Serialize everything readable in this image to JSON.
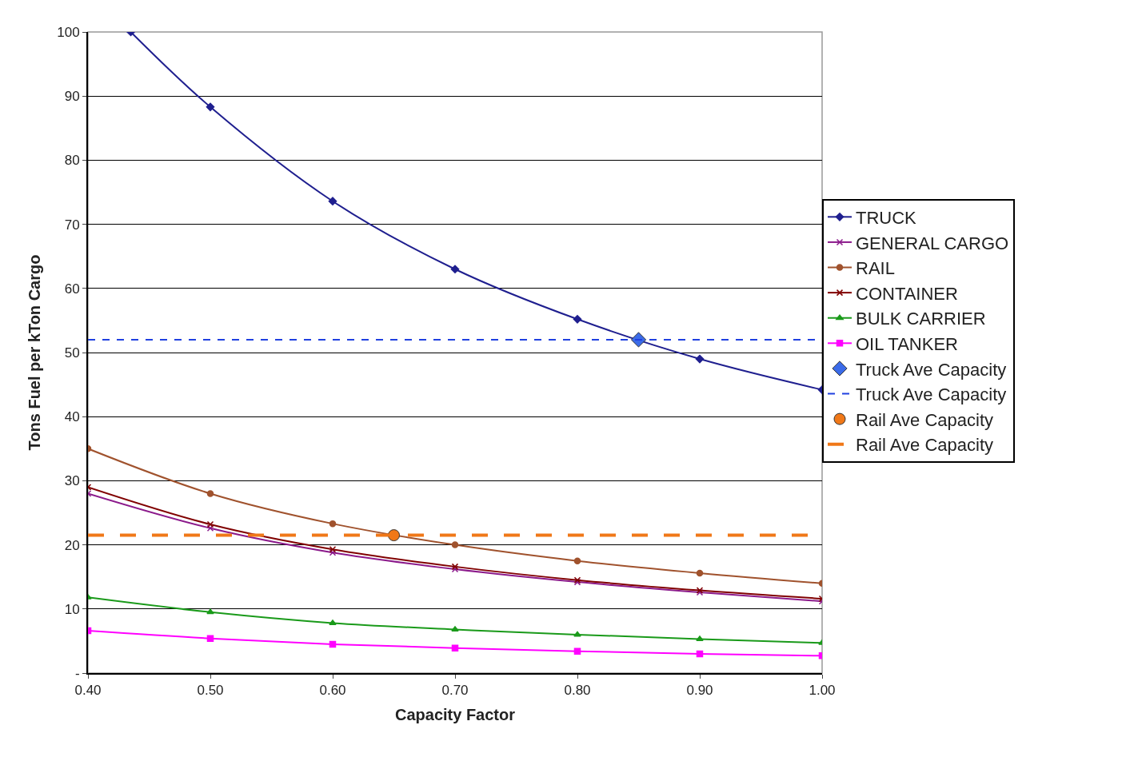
{
  "chart_data": {
    "type": "line",
    "xlabel": "Capacity Factor",
    "ylabel": "Tons Fuel per kTon Cargo",
    "x": [
      0.4,
      0.5,
      0.6,
      0.7,
      0.8,
      0.9,
      1.0
    ],
    "xlim": [
      0.4,
      1.0
    ],
    "xticks": [
      {
        "value": 0.4,
        "label": "0.40"
      },
      {
        "value": 0.5,
        "label": "0.50"
      },
      {
        "value": 0.6,
        "label": "0.60"
      },
      {
        "value": 0.7,
        "label": "0.70"
      },
      {
        "value": 0.8,
        "label": "0.80"
      },
      {
        "value": 0.9,
        "label": "0.90"
      },
      {
        "value": 1.0,
        "label": "1.00"
      }
    ],
    "ylim": [
      0,
      100
    ],
    "yticks": [
      {
        "value": 0,
        "label": "-"
      },
      10,
      20,
      30,
      40,
      50,
      60,
      70,
      80,
      90,
      100
    ],
    "grid": "y",
    "legend": "right",
    "series": [
      {
        "name": "TRUCK",
        "color": "#1f1f8f",
        "marker": "diamond",
        "x": [
          0.435,
          0.5,
          0.6,
          0.7,
          0.8,
          0.9,
          1.0
        ],
        "values": [
          100,
          88.3,
          73.6,
          63,
          55.2,
          49,
          44.2
        ]
      },
      {
        "name": "GENERAL CARGO",
        "color": "#8b1a8b",
        "marker": "cross",
        "values": [
          28,
          22.6,
          18.8,
          16.2,
          14.2,
          12.6,
          11.2
        ]
      },
      {
        "name": "RAIL",
        "color": "#a0522d",
        "marker": "circle",
        "values": [
          35,
          28,
          23.3,
          20,
          17.5,
          15.6,
          14
        ]
      },
      {
        "name": "CONTAINER",
        "color": "#800000",
        "marker": "cross",
        "values": [
          29,
          23.2,
          19.3,
          16.6,
          14.5,
          12.9,
          11.6
        ]
      },
      {
        "name": "BULK CARRIER",
        "color": "#1a9a1a",
        "marker": "triangle",
        "values": [
          11.8,
          9.5,
          7.8,
          6.8,
          6,
          5.3,
          4.7
        ]
      },
      {
        "name": "OIL TANKER",
        "color": "#ff00ff",
        "marker": "square",
        "values": [
          6.6,
          5.4,
          4.5,
          3.9,
          3.4,
          3.0,
          2.7
        ]
      },
      {
        "name": "Truck Ave Capacity",
        "type": "scatter",
        "color": "#3b6be8",
        "marker": "diamond",
        "x": [
          0.85
        ],
        "values": [
          52
        ]
      },
      {
        "name": "Rail Ave Capacity",
        "type": "scatter",
        "color": "#f07818",
        "marker": "circle",
        "x": [
          0.65
        ],
        "values": [
          21.5
        ]
      }
    ],
    "ref_lines": [
      {
        "axis": "y",
        "value": 52,
        "label": "Truck Ave Capacity",
        "color": "#2040e0",
        "line_style": "dashed"
      },
      {
        "axis": "y",
        "value": 21.5,
        "label": "Rail Ave Capacity",
        "color": "#f07818",
        "line_style": "longdash"
      }
    ]
  }
}
